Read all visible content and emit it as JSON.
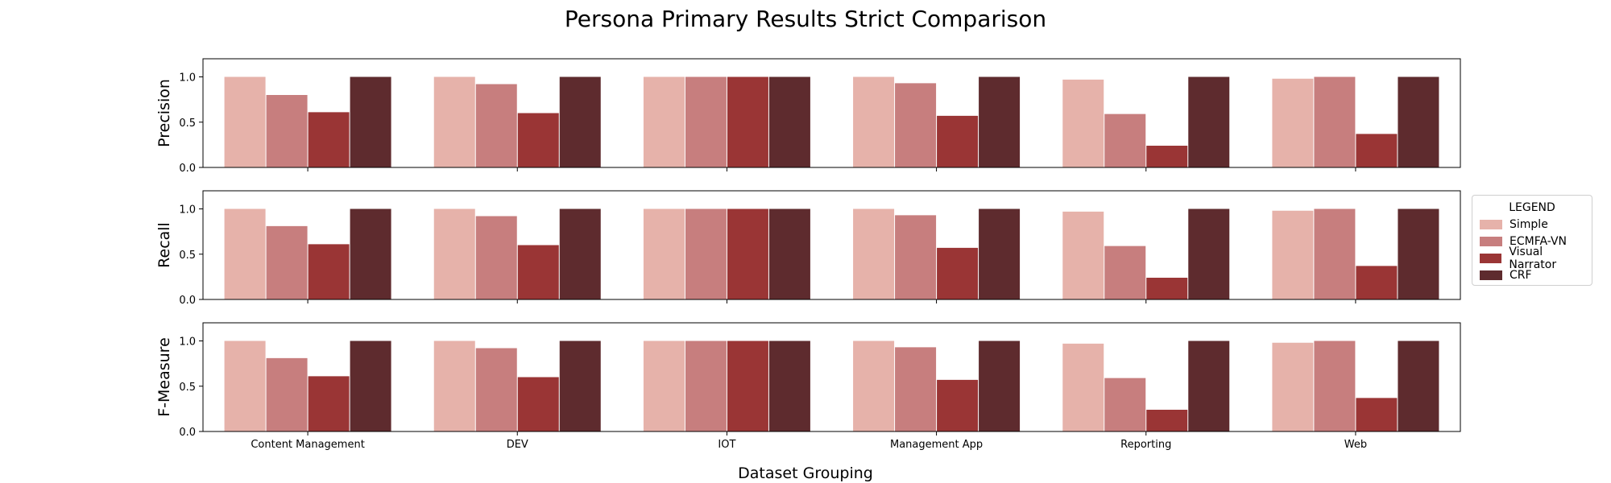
{
  "chart_data": {
    "type": "bar",
    "title": "Persona Primary Results Strict Comparison",
    "xlabel": "Dataset Grouping",
    "categories": [
      "Content Management",
      "DEV",
      "IOT",
      "Management App",
      "Reporting",
      "Web"
    ],
    "ylim": [
      0,
      1.2
    ],
    "yticks": [
      "0.0",
      "0.5",
      "1.0"
    ],
    "legend": {
      "title": "LEGEND",
      "placement": "right"
    },
    "series_names": [
      "Simple",
      "ECMFA-VN",
      "Visual Narrator",
      "CRF"
    ],
    "colors": [
      "#e6b2aa",
      "#c77e7e",
      "#9a3535",
      "#5e2b2e"
    ],
    "panels": [
      {
        "ylabel": "Precision",
        "series": [
          {
            "name": "Simple",
            "values": [
              1.0,
              1.0,
              1.0,
              1.0,
              0.97,
              0.98
            ]
          },
          {
            "name": "ECMFA-VN",
            "values": [
              0.8,
              0.92,
              1.0,
              0.93,
              0.59,
              1.0
            ]
          },
          {
            "name": "Visual Narrator",
            "values": [
              0.61,
              0.6,
              1.0,
              0.57,
              0.24,
              0.37
            ]
          },
          {
            "name": "CRF",
            "values": [
              1.0,
              1.0,
              1.0,
              1.0,
              1.0,
              1.0
            ]
          }
        ]
      },
      {
        "ylabel": "Recall",
        "series": [
          {
            "name": "Simple",
            "values": [
              1.0,
              1.0,
              1.0,
              1.0,
              0.97,
              0.98
            ]
          },
          {
            "name": "ECMFA-VN",
            "values": [
              0.81,
              0.92,
              1.0,
              0.93,
              0.59,
              1.0
            ]
          },
          {
            "name": "Visual Narrator",
            "values": [
              0.61,
              0.6,
              1.0,
              0.57,
              0.24,
              0.37
            ]
          },
          {
            "name": "CRF",
            "values": [
              1.0,
              1.0,
              1.0,
              1.0,
              1.0,
              1.0
            ]
          }
        ]
      },
      {
        "ylabel": "F-Measure",
        "series": [
          {
            "name": "Simple",
            "values": [
              1.0,
              1.0,
              1.0,
              1.0,
              0.97,
              0.98
            ]
          },
          {
            "name": "ECMFA-VN",
            "values": [
              0.81,
              0.92,
              1.0,
              0.93,
              0.59,
              1.0
            ]
          },
          {
            "name": "Visual Narrator",
            "values": [
              0.61,
              0.6,
              1.0,
              0.57,
              0.24,
              0.37
            ]
          },
          {
            "name": "CRF",
            "values": [
              1.0,
              1.0,
              1.0,
              1.0,
              1.0,
              1.0
            ]
          }
        ]
      }
    ],
    "grid": false
  }
}
